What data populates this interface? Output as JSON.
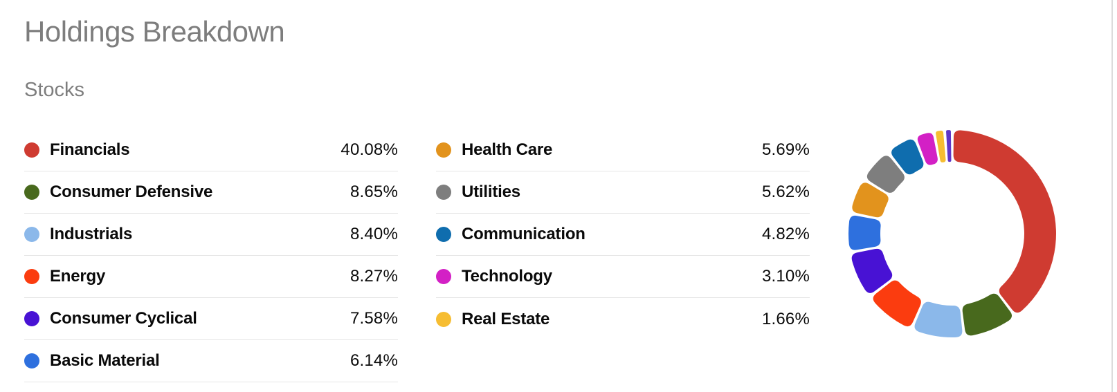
{
  "page": {
    "title": "Holdings Breakdown",
    "subtitle": "Stocks"
  },
  "colors": {
    "background": "#ffffff",
    "heading_text": "#7d7d7d",
    "label_text": "#0a0a0a",
    "value_text": "#0b0b0b",
    "divider": "#e5e5e5",
    "panel_right_border": "#dcdcdc"
  },
  "holdings": {
    "columns": [
      {
        "divider_after_last": true,
        "items": [
          {
            "label": "Financials",
            "value": "40.08%",
            "color": "#cf3b31"
          },
          {
            "label": "Consumer Defensive",
            "value": "8.65%",
            "color": "#48691d"
          },
          {
            "label": "Industrials",
            "value": "8.40%",
            "color": "#8bb8ea"
          },
          {
            "label": "Energy",
            "value": "8.27%",
            "color": "#fb3c0f"
          },
          {
            "label": "Consumer Cyclical",
            "value": "7.58%",
            "color": "#4812d4"
          },
          {
            "label": "Basic Material",
            "value": "6.14%",
            "color": "#2e70de"
          }
        ]
      },
      {
        "divider_after_last": false,
        "items": [
          {
            "label": "Health Care",
            "value": "5.69%",
            "color": "#e2931d"
          },
          {
            "label": "Utilities",
            "value": "5.62%",
            "color": "#7e7e7e"
          },
          {
            "label": "Communication",
            "value": "4.82%",
            "color": "#0f6dae"
          },
          {
            "label": "Technology",
            "value": "3.10%",
            "color": "#d320c5"
          },
          {
            "label": "Real Estate",
            "value": "1.66%",
            "color": "#f6bd32"
          }
        ]
      }
    ]
  },
  "chart_data": {
    "type": "pie",
    "subtype": "donut",
    "title": "Holdings Breakdown",
    "group_label": "Stocks",
    "values_are_percent": true,
    "start_angle_deg": 0,
    "direction": "clockwise",
    "outer_radius": 150,
    "inner_radius": 104,
    "legend_position": "left",
    "segments": [
      {
        "label": "Financials",
        "value": 40.08,
        "color": "#cf3b31"
      },
      {
        "label": "Consumer Defensive",
        "value": 8.65,
        "color": "#48691d"
      },
      {
        "label": "Industrials",
        "value": 8.4,
        "color": "#8bb8ea"
      },
      {
        "label": "Energy",
        "value": 8.27,
        "color": "#fb3c0f"
      },
      {
        "label": "Consumer Cyclical",
        "value": 7.58,
        "color": "#4812d4"
      },
      {
        "label": "Basic Material",
        "value": 6.14,
        "color": "#2e70de"
      },
      {
        "label": "Health Care",
        "value": 5.69,
        "color": "#e2931d"
      },
      {
        "label": "Utilities",
        "value": 5.62,
        "color": "#7e7e7e"
      },
      {
        "label": "Communication",
        "value": 4.82,
        "color": "#0f6dae"
      },
      {
        "label": "Technology",
        "value": 3.1,
        "color": "#d320c5"
      },
      {
        "label": "Real Estate",
        "value": 1.66,
        "color": "#f6bd32"
      },
      {
        "label": "",
        "value": 1.2,
        "color": "#5e35c8"
      }
    ]
  }
}
